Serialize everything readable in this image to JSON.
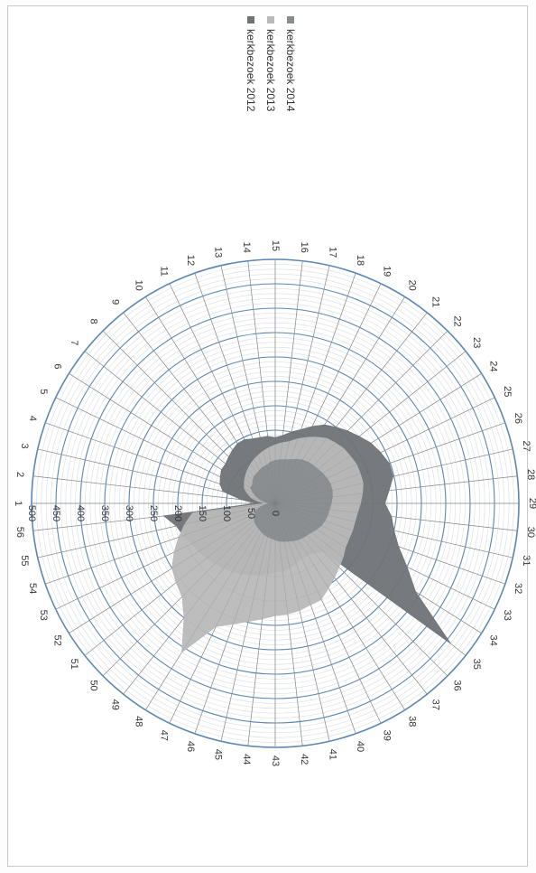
{
  "chart_data": {
    "type": "radar",
    "orientation": "rotated 90 degrees clockwise on the page",
    "title": "",
    "categories": [
      "1",
      "2",
      "3",
      "4",
      "5",
      "6",
      "7",
      "8",
      "9",
      "10",
      "11",
      "12",
      "13",
      "14",
      "15",
      "16",
      "17",
      "18",
      "19",
      "20",
      "21",
      "22",
      "23",
      "24",
      "25",
      "26",
      "27",
      "28",
      "29",
      "30",
      "31",
      "32",
      "33",
      "34",
      "35",
      "36",
      "37",
      "38",
      "39",
      "40",
      "41",
      "42",
      "43",
      "44",
      "45",
      "46",
      "47",
      "48",
      "49",
      "50",
      "51",
      "52",
      "53",
      "54",
      "55",
      "56"
    ],
    "radial_ticks": [
      "0",
      "50",
      "100",
      "150",
      "200",
      "250",
      "300",
      "350",
      "400",
      "450",
      "500"
    ],
    "rmax": 500,
    "grid": true,
    "legend_position": "top-right (rotated)",
    "series": [
      {
        "name": "kerkbezoek 2012",
        "color": "#6f7377",
        "values": [
          40,
          70,
          110,
          120,
          125,
          130,
          130,
          135,
          140,
          145,
          145,
          140,
          138,
          138,
          135,
          140,
          150,
          160,
          175,
          190,
          200,
          210,
          220,
          232,
          240,
          248,
          248,
          235,
          225,
          240,
          250,
          268,
          300,
          340,
          460,
          140,
          130,
          125,
          125,
          130,
          135,
          140,
          140,
          145,
          150,
          155,
          160,
          165,
          170,
          175,
          180,
          185,
          190,
          200,
          208,
          230
        ]
      },
      {
        "name": "kerkbezoek 2013",
        "color": "#b9b9b9",
        "values": [
          20,
          35,
          50,
          60,
          70,
          75,
          80,
          85,
          90,
          95,
          100,
          105,
          110,
          115,
          120,
          125,
          130,
          140,
          150,
          160,
          170,
          175,
          180,
          182,
          185,
          185,
          185,
          180,
          175,
          170,
          168,
          168,
          168,
          170,
          178,
          185,
          195,
          205,
          218,
          220,
          225,
          228,
          230,
          238,
          248,
          262,
          280,
          360,
          300,
          270,
          260,
          250,
          230,
          210,
          190,
          170
        ]
      },
      {
        "name": "kerkbezoek 2014",
        "color": "#8a8d90",
        "values": [
          10,
          20,
          30,
          40,
          50,
          60,
          60,
          65,
          70,
          72,
          75,
          78,
          80,
          85,
          88,
          90,
          92,
          95,
          100,
          105,
          108,
          110,
          112,
          115,
          118,
          120,
          120,
          118,
          115,
          112,
          110,
          108,
          105,
          100,
          95,
          92,
          90,
          88,
          85,
          82,
          80,
          78,
          75,
          72,
          70,
          68,
          65,
          62,
          60,
          58,
          55,
          50,
          45,
          40,
          30,
          20
        ]
      }
    ]
  }
}
